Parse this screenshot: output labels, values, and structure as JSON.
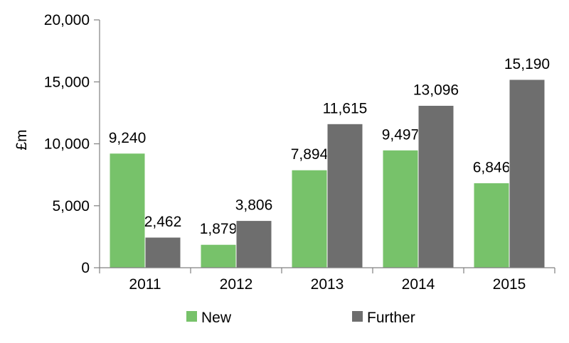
{
  "chart_data": {
    "type": "bar",
    "categories": [
      "2011",
      "2012",
      "2013",
      "2014",
      "2015"
    ],
    "series": [
      {
        "name": "New",
        "values": [
          9240,
          1879,
          7894,
          9497,
          6846
        ],
        "labels": [
          "9,240",
          "1,879",
          "7,894",
          "9,497",
          "6,846"
        ],
        "color": "#77c26a"
      },
      {
        "name": "Further",
        "values": [
          2462,
          3806,
          11615,
          13096,
          15190
        ],
        "labels": [
          "2,462",
          "3,806",
          "11,615",
          "13,096",
          "15,190"
        ],
        "color": "#6e6e6e"
      }
    ],
    "title": "",
    "xlabel": "",
    "ylabel": "£m",
    "ylim": [
      0,
      20000
    ],
    "yticks": [
      0,
      5000,
      10000,
      15000,
      20000
    ],
    "ytick_labels": [
      "0",
      "5,000",
      "10,000",
      "15,000",
      "20,000"
    ],
    "grid": false,
    "legend_position": "bottom"
  }
}
